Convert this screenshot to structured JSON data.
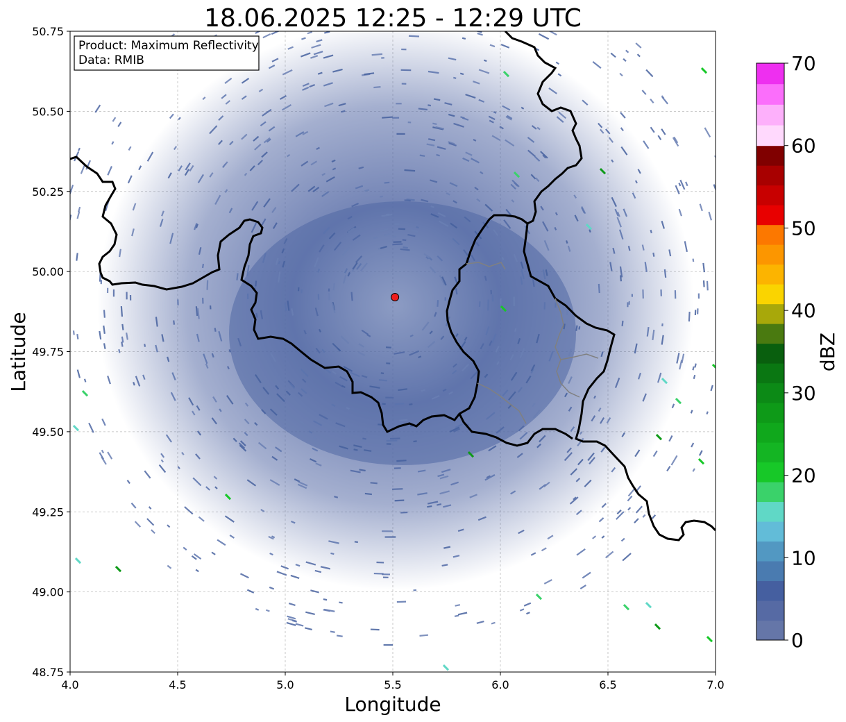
{
  "title": "18.06.2025 12:25 - 12:29 UTC",
  "info_box": {
    "product": "Product: Maximum Reflectivity",
    "data": "Data: RMIB"
  },
  "map": {
    "xlabel": "Longitude",
    "ylabel": "Latitude",
    "xlim": [
      4.0,
      7.0
    ],
    "ylim": [
      48.75,
      50.75
    ],
    "x_ticks": [
      "4.0",
      "4.5",
      "5.0",
      "5.5",
      "6.0",
      "6.5",
      "7.0"
    ],
    "y_ticks": [
      "48.75",
      "49.00",
      "49.25",
      "49.50",
      "49.75",
      "50.00",
      "50.25",
      "50.50",
      "50.75"
    ],
    "grid": true,
    "radar_site": {
      "lon": 5.51,
      "lat": 49.92,
      "color": "#ee1c1c"
    }
  },
  "colorbar": {
    "label": "dBZ",
    "range": [
      0,
      70
    ],
    "ticks": [
      "0",
      "10",
      "20",
      "30",
      "40",
      "50",
      "60",
      "70"
    ],
    "colors": [
      "#6576a8",
      "#566aa4",
      "#455fa0",
      "#4a7bb0",
      "#5298c2",
      "#62bcd8",
      "#60d8c6",
      "#3ad26a",
      "#17c828",
      "#14b523",
      "#10a81c",
      "#0e9a18",
      "#0c8a16",
      "#0a7712",
      "#095f0e",
      "#4a7a10",
      "#a8a80a",
      "#fad400",
      "#fcb400",
      "#fc9600",
      "#fc7800",
      "#e80000",
      "#c80000",
      "#a80000",
      "#800000",
      "#ffd9fd",
      "#fdb0fb",
      "#fb6efb",
      "#ee2ff0"
    ]
  }
}
